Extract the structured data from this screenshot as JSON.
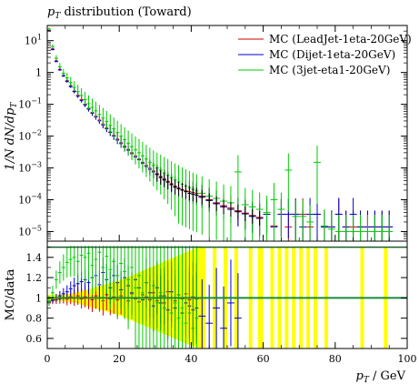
{
  "chart_data": [
    {
      "type": "line",
      "title": "p_T distribution (Toward)",
      "title_parts": {
        "var": "p",
        "sub": "T",
        "rest": " distribution (Toward)"
      },
      "xlabel": "p_T / GeV",
      "xlabel_parts": {
        "var": "p",
        "sub": "T",
        "rest": " / GeV"
      },
      "ylabel": "1/N dN/dp_T",
      "ylabel_parts": {
        "a": "1/N",
        "b": " dN/dp",
        "sub": "T"
      },
      "y_scale": "log",
      "xlim": [
        0,
        100
      ],
      "ylim": [
        5e-06,
        30
      ],
      "y_ticks": [
        {
          "value": 10,
          "label": "10",
          "exp": "1"
        },
        {
          "value": 1,
          "label": "1",
          "exp": ""
        },
        {
          "value": 0.1,
          "label": "10",
          "exp": "−1"
        },
        {
          "value": 0.01,
          "label": "10",
          "exp": "−2"
        },
        {
          "value": 0.001,
          "label": "10",
          "exp": "−3"
        },
        {
          "value": 0.0001,
          "label": "10",
          "exp": "−4"
        },
        {
          "value": 1e-05,
          "label": "10",
          "exp": "−5"
        }
      ],
      "legend_position": "top-right",
      "grid": false,
      "series": [
        {
          "name": "MC (LeadJet-1eta-20GeV)",
          "color": "#cc0000",
          "x": [
            0.5,
            1.5,
            2.5,
            3.5,
            4.5,
            5.5,
            6.5,
            7.5,
            8.5,
            9.5,
            10.5,
            11.5,
            12.5,
            13.5,
            14.5,
            15.5,
            16.5,
            17.5,
            18.5,
            19.5,
            20.5,
            21.5,
            22.5,
            23.5,
            24.5,
            25.5,
            26.5,
            27.5,
            28.5,
            29.5,
            30.5,
            31.5,
            32.5,
            33.5,
            34.5,
            35.5,
            36.5,
            37.5,
            38.5,
            39.5,
            40.5,
            41.5,
            43,
            45,
            47,
            49,
            51,
            53,
            55,
            57,
            59,
            61,
            63,
            65,
            67,
            69,
            71,
            73,
            75,
            77,
            79,
            81,
            83,
            85,
            87,
            89,
            91,
            93,
            95
          ],
          "y": [
            21,
            5.5,
            2.3,
            1.25,
            0.8,
            0.55,
            0.38,
            0.26,
            0.19,
            0.14,
            0.1,
            0.075,
            0.055,
            0.042,
            0.032,
            0.024,
            0.018,
            0.0135,
            0.0105,
            0.008,
            0.0062,
            0.0048,
            0.0038,
            0.003,
            0.0024,
            0.0019,
            0.0015,
            0.0012,
            0.00098,
            0.0008,
            0.00066,
            0.00054,
            0.00045,
            0.00038,
            0.00032,
            0.00027,
            0.00024,
            0.00021,
            0.00019,
            0.00018,
            0.00017,
            0.00016,
            0.00013,
            0.0001,
            8e-05,
            6.5e-05,
            5.5e-05,
            4.5e-05,
            3.8e-05,
            3.2e-05,
            2.8e-05,
            3.5e-05,
            1.5e-05,
            3.5e-05,
            1.4e-05,
            3.5e-05,
            3.5e-05,
            1.4e-05,
            3.5e-05,
            1.4e-05,
            1.4e-05,
            3.5e-05,
            1.4e-05,
            1.4e-05,
            1.4e-05,
            1.4e-05,
            1.4e-05,
            1.4e-05,
            1.4e-05
          ]
        },
        {
          "name": "MC (Dijet-1eta-20GeV)",
          "color": "#0000cc",
          "x": [
            0.5,
            1.5,
            2.5,
            3.5,
            4.5,
            5.5,
            6.5,
            7.5,
            8.5,
            9.5,
            10.5,
            11.5,
            12.5,
            13.5,
            14.5,
            15.5,
            16.5,
            17.5,
            18.5,
            19.5,
            20.5,
            21.5,
            22.5,
            23.5,
            24.5,
            25.5,
            26.5,
            27.5,
            28.5,
            29.5,
            30.5,
            31.5,
            32.5,
            33.5,
            34.5,
            35.5,
            36.5,
            37.5,
            38.5,
            39.5,
            40.5,
            41.5,
            43,
            45,
            47,
            49,
            51,
            53,
            55,
            57,
            59,
            61,
            63,
            65,
            67,
            69,
            71,
            73,
            75,
            77,
            79,
            81,
            83,
            85,
            87,
            89,
            91,
            93,
            95
          ],
          "y": [
            20,
            5.2,
            2.2,
            1.2,
            0.78,
            0.52,
            0.36,
            0.25,
            0.18,
            0.13,
            0.095,
            0.07,
            0.052,
            0.04,
            0.03,
            0.022,
            0.017,
            0.013,
            0.01,
            0.0075,
            0.0058,
            0.0045,
            0.0036,
            0.0028,
            0.0022,
            0.0018,
            0.0014,
            0.0011,
            0.0009,
            0.00075,
            0.00062,
            0.0005,
            0.00042,
            0.00036,
            0.0003,
            0.00025,
            0.00022,
            0.0002,
            0.00018,
            0.00016,
            0.00015,
            0.00014,
            0.00012,
            9.5e-05,
            7.5e-05,
            6e-05,
            5e-05,
            4.2e-05,
            3.6e-05,
            3e-05,
            2.6e-05,
            3.5e-05,
            1.4e-05,
            3.5e-05,
            3.5e-05,
            3.5e-05,
            1.4e-05,
            3.5e-05,
            3.5e-05,
            1.4e-05,
            1.4e-05,
            3.5e-05,
            1.4e-05,
            3.5e-05,
            1.4e-05,
            1.4e-05,
            1.4e-05,
            1.4e-05,
            1.4e-05
          ]
        },
        {
          "name": "MC (3jet-eta1-20GeV)",
          "color": "#00cc00",
          "x": [
            0.5,
            1.5,
            2.5,
            3.5,
            4.5,
            5.5,
            6.5,
            7.5,
            8.5,
            9.5,
            10.5,
            11.5,
            12.5,
            13.5,
            14.5,
            15.5,
            16.5,
            17.5,
            18.5,
            19.5,
            20.5,
            21.5,
            22.5,
            23.5,
            24.5,
            25.5,
            26.5,
            27.5,
            28.5,
            29.5,
            30.5,
            31.5,
            32.5,
            33.5,
            34.5,
            35.5,
            36.5,
            37.5,
            38.5,
            39.5,
            40.5,
            41.5,
            43,
            45,
            47,
            49,
            51,
            53,
            55,
            57,
            59,
            61,
            63,
            65,
            67,
            69,
            71,
            73,
            75,
            77,
            79,
            81,
            83,
            85,
            87,
            89,
            91,
            93,
            95
          ],
          "y": [
            23,
            6.5,
            2.8,
            1.5,
            0.95,
            0.68,
            0.48,
            0.34,
            0.25,
            0.19,
            0.14,
            0.105,
            0.08,
            0.062,
            0.048,
            0.037,
            0.029,
            0.022,
            0.017,
            0.013,
            0.01,
            0.0078,
            0.006,
            0.0047,
            0.0037,
            0.003,
            0.0024,
            0.0019,
            0.0015,
            0.0012,
            0.001,
            0.00085,
            0.0007,
            0.0006,
            0.0005,
            0.00042,
            0.00036,
            0.00031,
            0.00027,
            0.00024,
            0.00021,
            0.00019,
            0.00016,
            0.00013,
            0.00011,
            9e-05,
            8e-05,
            0.00075,
            7e-05,
            6e-05,
            5e-05,
            4e-05,
            0.0001,
            5e-05,
            0.00085,
            3e-05,
            3e-05,
            2e-05,
            0.0015,
            1.5e-05,
            1.2e-05,
            1e-05,
            1e-05,
            1e-05,
            1e-05,
            1e-05,
            1e-05,
            1e-05,
            1e-05
          ]
        }
      ]
    },
    {
      "type": "line",
      "ylabel": "MC/data",
      "xlabel": "p_T / GeV",
      "xlim": [
        0,
        100
      ],
      "ylim": [
        0.5,
        1.56
      ],
      "x_ticks": [
        0,
        20,
        40,
        60,
        80,
        100
      ],
      "y_ticks": [
        0.6,
        0.8,
        1,
        1.2,
        1.4
      ],
      "reference_line": 1,
      "data_band_color": "#ffff00",
      "data_band": {
        "x": [
          0,
          2,
          4,
          6,
          8,
          10,
          12,
          14,
          16,
          18,
          20,
          22,
          24,
          26,
          28,
          30,
          32,
          34,
          36,
          38,
          40,
          42
        ],
        "lo": [
          0.97,
          0.97,
          0.97,
          0.96,
          0.95,
          0.93,
          0.91,
          0.89,
          0.87,
          0.85,
          0.83,
          0.8,
          0.77,
          0.74,
          0.71,
          0.68,
          0.65,
          0.62,
          0.59,
          0.56,
          0.53,
          0.5
        ],
        "hi": [
          1.03,
          1.03,
          1.03,
          1.04,
          1.05,
          1.07,
          1.09,
          1.11,
          1.13,
          1.15,
          1.17,
          1.2,
          1.23,
          1.26,
          1.29,
          1.32,
          1.35,
          1.38,
          1.41,
          1.44,
          1.47,
          1.5
        ]
      },
      "data_band_full_bins": [
        [
          42,
          44
        ],
        [
          46,
          47
        ],
        [
          49,
          50
        ],
        [
          52,
          53
        ],
        [
          56,
          57
        ],
        [
          58.5,
          60
        ],
        [
          62,
          63
        ],
        [
          64,
          65
        ],
        [
          66,
          67
        ],
        [
          68,
          69
        ],
        [
          70,
          71
        ],
        [
          72,
          73
        ],
        [
          74,
          75
        ],
        [
          77,
          78
        ],
        [
          87,
          88
        ],
        [
          93.5,
          94.5
        ]
      ],
      "series": [
        {
          "name": "MC (LeadJet-1eta-20GeV)",
          "color": "#cc0000",
          "x": [
            0.5,
            1.5,
            2.5,
            3.5,
            4.5,
            5.5,
            6.5,
            7.5,
            8.5,
            9.5,
            10.5,
            11.5,
            12.5,
            13.5,
            14.5,
            15.5,
            16.5,
            17.5,
            18.5,
            19.5,
            20.5,
            21.5,
            22.5,
            23.5,
            24.5,
            25.5,
            26.5,
            27.5,
            28.5,
            29.5,
            30.5,
            31.5,
            32.5,
            33.5,
            34.5,
            35.5,
            36.5,
            37.5,
            38.5,
            39.5,
            40.5,
            41.5
          ],
          "y": [
            0.95,
            0.97,
            0.98,
            0.99,
            1.0,
            0.99,
            1.01,
            1.0,
            1.02,
            0.99,
            1.01,
            1.0,
            0.98,
            1.02,
            1.0,
            0.97,
            1.03,
            0.99,
            1.01,
            0.98,
            1.02,
            1.0,
            0.97,
            1.04,
            0.99,
            0.96,
            1.03,
            1.01,
            0.98,
            1.05,
            0.97,
            1.02,
            0.95,
            1.06,
            1.0,
            0.97,
            1.03,
            0.99,
            1.04,
            0.98,
            1.01,
            0.99
          ]
        },
        {
          "name": "MC (Dijet-1eta-20GeV)",
          "color": "#0000cc",
          "x": [
            0.5,
            1.5,
            2.5,
            3.5,
            4.5,
            5.5,
            6.5,
            7.5,
            8.5,
            9.5,
            10.5,
            11.5,
            12.5,
            13.5,
            14.5,
            15.5,
            16.5,
            17.5,
            18.5,
            19.5,
            20.5,
            21.5,
            22.5,
            23.5,
            24.5,
            25.5,
            26.5,
            27.5,
            28.5,
            29.5,
            30.5,
            31.5,
            32.5,
            33.5,
            34.5,
            35.5,
            36.5,
            37.5,
            38.5,
            39.5,
            40.5,
            41.5,
            43,
            45,
            47,
            49,
            51,
            53
          ],
          "y": [
            0.96,
            0.98,
            1.0,
            1.02,
            1.04,
            1.06,
            1.09,
            1.12,
            1.14,
            1.16,
            1.18,
            1.15,
            1.2,
            1.22,
            1.13,
            1.25,
            1.18,
            1.1,
            1.22,
            1.15,
            1.08,
            1.2,
            1.12,
            1.05,
            1.18,
            1.1,
            0.98,
            1.15,
            1.05,
            0.92,
            1.1,
            0.95,
            1.02,
            0.88,
            1.06,
            0.9,
            1.0,
            0.85,
            0.95,
            0.92,
            0.88,
            0.9,
            0.82,
            0.75,
            0.9,
            0.7,
            0.95,
            0.8
          ]
        },
        {
          "name": "MC (3jet-eta1-20GeV)",
          "color": "#00cc00",
          "x": [
            0.5,
            1.5,
            2.5,
            3.5,
            4.5,
            5.5,
            6.5,
            7.5,
            8.5,
            9.5,
            10.5,
            11.5,
            12.5,
            13.5,
            14.5,
            15.5,
            16.5,
            17.5,
            18.5,
            19.5,
            20.5,
            21.5,
            22.5,
            23.5,
            24.5,
            25.5,
            26.5,
            27.5,
            28.5,
            29.5,
            30.5,
            31.5,
            32.5,
            33.5,
            34.5,
            35.5,
            36.5,
            37.5,
            38.5,
            39.5,
            40.5,
            41.5
          ],
          "y": [
            0.97,
            1.05,
            1.18,
            1.25,
            1.3,
            1.35,
            1.38,
            1.4,
            1.36,
            1.42,
            1.4,
            1.44,
            1.32,
            1.38,
            1.45,
            1.3,
            1.41,
            1.28,
            1.36,
            1.22,
            1.34,
            1.26,
            1.18,
            1.3,
            1.1,
            1.22,
            1.05,
            1.15,
            1.0,
            1.12,
            0.95,
            1.05,
            0.9,
            1.0,
            0.85,
            0.95,
            0.8,
            0.9,
            0.75,
            0.85,
            0.7,
            0.8
          ]
        }
      ]
    }
  ]
}
